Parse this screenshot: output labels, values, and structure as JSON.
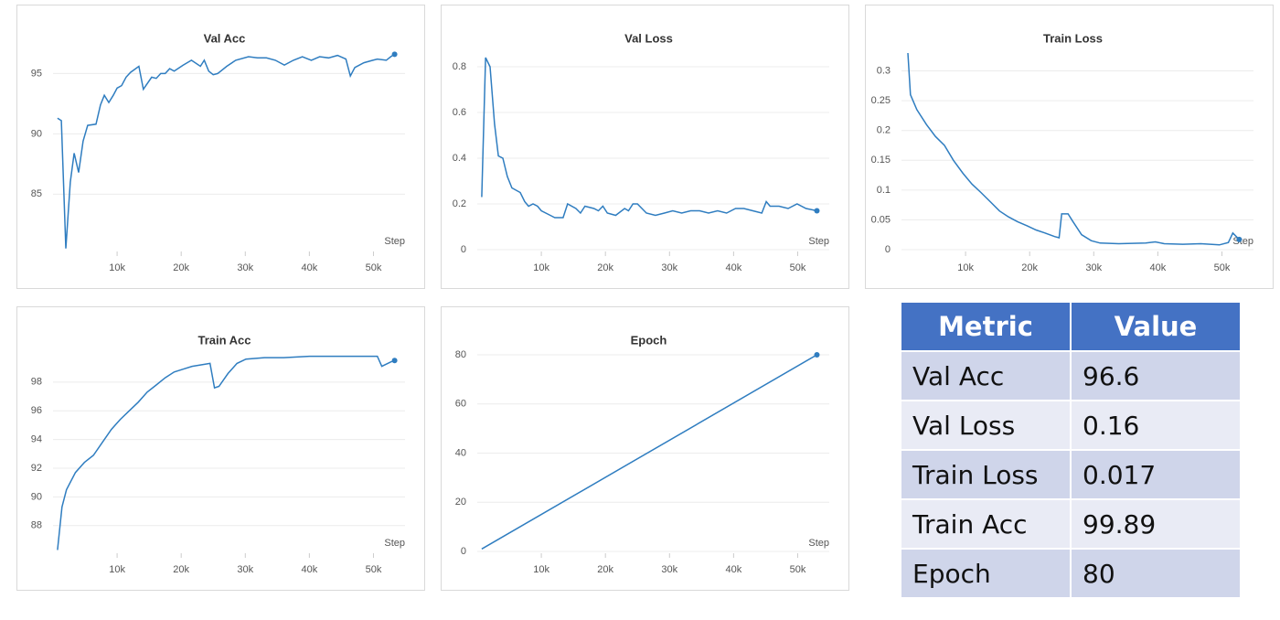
{
  "chart_data": [
    {
      "type": "line",
      "title": "Val Acc",
      "xlabel": "Step",
      "xlim": [
        0,
        53500
      ],
      "ylim": [
        80.4,
        96.7
      ],
      "grid": true,
      "color": "#2f7dc0",
      "xticks": [
        {
          "value": 10000,
          "label": "10k"
        },
        {
          "value": 20000,
          "label": "20k"
        },
        {
          "value": 30000,
          "label": "30k"
        },
        {
          "value": 40000,
          "label": "40k"
        },
        {
          "value": 50000,
          "label": "50k"
        }
      ],
      "yticks": [
        85,
        90,
        95
      ],
      "x": [
        700,
        1300,
        2000,
        2700,
        3300,
        4000,
        4700,
        5400,
        6700,
        7400,
        8000,
        8700,
        9400,
        10000,
        10700,
        11400,
        12100,
        13400,
        14100,
        15400,
        16100,
        16800,
        17500,
        18200,
        18900,
        20300,
        21600,
        23000,
        23600,
        24300,
        25000,
        25700,
        27100,
        28500,
        30500,
        31900,
        33300,
        34700,
        36100,
        37500,
        38900,
        40300,
        41600,
        43000,
        44400,
        45700,
        46400,
        47100,
        48500,
        49900,
        50600,
        52000,
        52700,
        53300
      ],
      "values": [
        91.3,
        91.1,
        80.5,
        86,
        88.4,
        86.8,
        89.4,
        90.7,
        90.8,
        92.4,
        93.2,
        92.6,
        93.2,
        93.8,
        94,
        94.7,
        95.1,
        95.6,
        93.7,
        94.7,
        94.6,
        95,
        95,
        95.4,
        95.2,
        95.7,
        96.1,
        95.6,
        96.1,
        95.2,
        94.9,
        95,
        95.6,
        96.1,
        96.4,
        96.3,
        96.3,
        96.1,
        95.7,
        96.1,
        96.4,
        96.1,
        96.4,
        96.3,
        96.5,
        96.2,
        94.8,
        95.5,
        95.9,
        96.1,
        96.2,
        96.1,
        96.4,
        96.6
      ]
    },
    {
      "type": "line",
      "title": "Val Loss",
      "xlabel": "Step",
      "xlim": [
        0,
        53500
      ],
      "ylim": [
        0,
        0.86
      ],
      "grid": true,
      "color": "#2f7dc0",
      "xticks": [
        {
          "value": 10000,
          "label": "10k"
        },
        {
          "value": 20000,
          "label": "20k"
        },
        {
          "value": 30000,
          "label": "30k"
        },
        {
          "value": 40000,
          "label": "40k"
        },
        {
          "value": 50000,
          "label": "50k"
        }
      ],
      "yticks": [
        0,
        0.2,
        0.4,
        0.6,
        0.8
      ],
      "x": [
        700,
        1300,
        2000,
        2700,
        3300,
        4000,
        4700,
        5400,
        6700,
        7400,
        8000,
        8700,
        9400,
        10000,
        11400,
        12100,
        13400,
        14100,
        15400,
        16100,
        16800,
        18200,
        18900,
        19600,
        20300,
        21600,
        23000,
        23600,
        24300,
        25000,
        26400,
        27800,
        29200,
        30500,
        31900,
        33300,
        34700,
        36100,
        37500,
        38900,
        40300,
        41600,
        43000,
        44400,
        45100,
        45700,
        47100,
        48500,
        49900,
        51300,
        53000
      ],
      "values": [
        0.23,
        0.84,
        0.8,
        0.55,
        0.41,
        0.4,
        0.32,
        0.27,
        0.25,
        0.21,
        0.19,
        0.2,
        0.19,
        0.17,
        0.15,
        0.14,
        0.14,
        0.2,
        0.18,
        0.16,
        0.19,
        0.18,
        0.17,
        0.19,
        0.16,
        0.15,
        0.18,
        0.17,
        0.2,
        0.2,
        0.16,
        0.15,
        0.16,
        0.17,
        0.16,
        0.17,
        0.17,
        0.16,
        0.17,
        0.16,
        0.18,
        0.18,
        0.17,
        0.16,
        0.21,
        0.19,
        0.19,
        0.18,
        0.2,
        0.18,
        0.17
      ]
    },
    {
      "type": "line",
      "title": "Train Loss",
      "xlabel": "Step",
      "xlim": [
        0,
        53500
      ],
      "ylim": [
        0,
        0.33
      ],
      "grid": true,
      "color": "#2f7dc0",
      "xticks": [
        {
          "value": 10000,
          "label": "10k"
        },
        {
          "value": 20000,
          "label": "20k"
        },
        {
          "value": 30000,
          "label": "30k"
        },
        {
          "value": 40000,
          "label": "40k"
        },
        {
          "value": 50000,
          "label": "50k"
        }
      ],
      "yticks": [
        0,
        0.05,
        0.1,
        0.15,
        0.2,
        0.25,
        0.3
      ],
      "x": [
        1000,
        1400,
        2400,
        3900,
        5300,
        6700,
        8100,
        9600,
        11000,
        12400,
        13900,
        15300,
        16700,
        18100,
        19600,
        21000,
        22400,
        23900,
        24600,
        25000,
        26000,
        26700,
        28100,
        29600,
        31000,
        33900,
        38100,
        39600,
        41000,
        43900,
        46700,
        49600,
        51000,
        51700,
        52700
      ],
      "values": [
        0.33,
        0.26,
        0.235,
        0.21,
        0.19,
        0.175,
        0.15,
        0.128,
        0.11,
        0.096,
        0.08,
        0.065,
        0.055,
        0.047,
        0.04,
        0.033,
        0.028,
        0.022,
        0.02,
        0.06,
        0.06,
        0.048,
        0.025,
        0.015,
        0.011,
        0.01,
        0.011,
        0.013,
        0.01,
        0.009,
        0.01,
        0.008,
        0.012,
        0.028,
        0.017
      ]
    },
    {
      "type": "line",
      "title": "Train Acc",
      "xlabel": "Step",
      "xlim": [
        0,
        53500
      ],
      "ylim": [
        86.2,
        99.9
      ],
      "grid": true,
      "color": "#2f7dc0",
      "xticks": [
        {
          "value": 10000,
          "label": "10k"
        },
        {
          "value": 20000,
          "label": "20k"
        },
        {
          "value": 30000,
          "label": "30k"
        },
        {
          "value": 40000,
          "label": "40k"
        },
        {
          "value": 50000,
          "label": "50k"
        }
      ],
      "yticks": [
        88,
        90,
        92,
        94,
        96,
        98
      ],
      "x": [
        700,
        1400,
        2100,
        3500,
        4900,
        6300,
        7700,
        9100,
        10500,
        11900,
        13300,
        14700,
        16100,
        17500,
        18900,
        20300,
        21700,
        23100,
        24500,
        25200,
        25900,
        27300,
        28700,
        30100,
        33000,
        36000,
        40000,
        44000,
        48000,
        50600,
        51300,
        52700,
        53300
      ],
      "values": [
        86.3,
        89.3,
        90.5,
        91.7,
        92.4,
        92.9,
        93.8,
        94.7,
        95.4,
        96,
        96.6,
        97.3,
        97.8,
        98.3,
        98.7,
        98.9,
        99.1,
        99.2,
        99.3,
        97.6,
        97.7,
        98.6,
        99.3,
        99.6,
        99.7,
        99.7,
        99.8,
        99.8,
        99.8,
        99.8,
        99.1,
        99.4,
        99.5
      ]
    },
    {
      "type": "line",
      "title": "Epoch",
      "xlabel": "Step",
      "xlim": [
        0,
        53500
      ],
      "ylim": [
        0,
        80
      ],
      "grid": true,
      "color": "#2f7dc0",
      "xticks": [
        {
          "value": 10000,
          "label": "10k"
        },
        {
          "value": 20000,
          "label": "20k"
        },
        {
          "value": 30000,
          "label": "30k"
        },
        {
          "value": 40000,
          "label": "40k"
        },
        {
          "value": 50000,
          "label": "50k"
        }
      ],
      "yticks": [
        0,
        20,
        40,
        60,
        80
      ],
      "x": [
        700,
        53000
      ],
      "values": [
        1,
        80
      ]
    }
  ],
  "table": {
    "header": [
      "Metric",
      "Value"
    ],
    "rows": [
      [
        "Val Acc",
        96.6
      ],
      [
        "Val Loss",
        0.16
      ],
      [
        "Train Loss",
        0.017
      ],
      [
        "Train Acc",
        99.89
      ],
      [
        "Epoch",
        80
      ]
    ]
  }
}
